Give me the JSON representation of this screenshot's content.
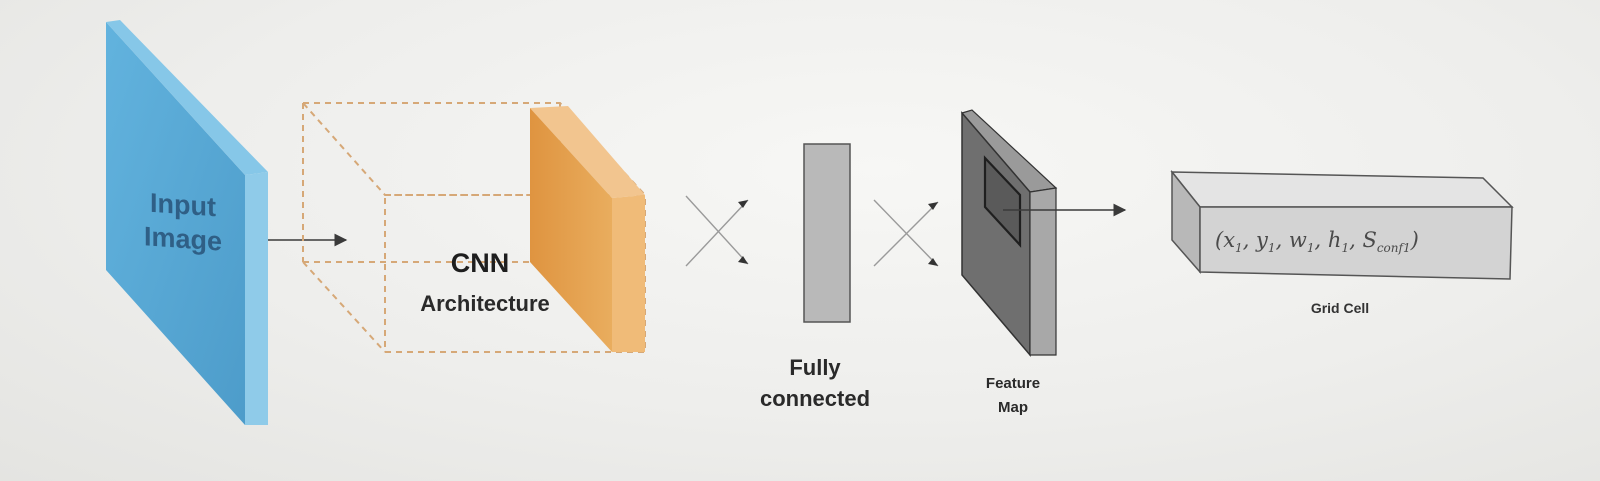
{
  "nodes": {
    "input_image": {
      "label_line1": "Input",
      "label_line2": "Image"
    },
    "cnn": {
      "title": "CNN",
      "subtitle": "Architecture"
    },
    "fully_connected": {
      "label_line1": "Fully",
      "label_line2": "connected"
    },
    "feature_map": {
      "label_line1": "Feature",
      "label_line2": "Map"
    },
    "grid_cell": {
      "label": "Grid Cell"
    }
  },
  "tuple": {
    "open": "(",
    "items": [
      {
        "var": "x",
        "sub": "1"
      },
      {
        "var": "y",
        "sub": "1"
      },
      {
        "var": "w",
        "sub": "1"
      },
      {
        "var": "h",
        "sub": "1"
      },
      {
        "var": "S",
        "sub": "conf1"
      }
    ],
    "separator": ", ",
    "close": ")"
  },
  "colors": {
    "input_blue": "#5aaad6",
    "cnn_orange": "#e3a04c",
    "fc_gray": "#b8b8b8",
    "feature_map_dark": "#6e6e6e",
    "grid_cell_gray": "#d4d4d4",
    "arrow": "#3a3a3a"
  }
}
